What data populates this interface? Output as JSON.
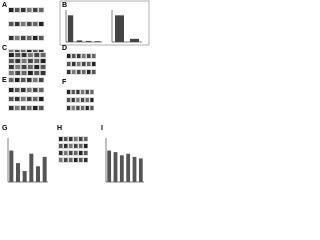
{
  "panels": [
    {
      "label": "A"
    },
    {
      "label": "B"
    },
    {
      "label": "C"
    },
    {
      "label": "D"
    },
    {
      "label": "E"
    },
    {
      "label": "F"
    },
    {
      "label": "G"
    },
    {
      "label": "H"
    },
    {
      "label": "I"
    }
  ],
  "charts": [
    {
      "type": "bar",
      "values": [
        100,
        6,
        4,
        3
      ],
      "ylim": [
        0,
        120
      ],
      "color": "#444444"
    },
    {
      "type": "bar",
      "values": [
        100,
        12
      ],
      "ylim": [
        0,
        120
      ],
      "color": "#444444"
    },
    {
      "type": "bar",
      "values": [
        1,
        0.6,
        0.35,
        0.9,
        0.5,
        0.8
      ],
      "ylim": [
        0,
        1.4
      ],
      "color": "#555555"
    },
    {
      "type": "bar",
      "values": [
        1,
        0.95,
        0.85,
        0.9,
        0.8,
        0.75
      ],
      "ylim": [
        0,
        1.4
      ],
      "color": "#555555"
    }
  ]
}
